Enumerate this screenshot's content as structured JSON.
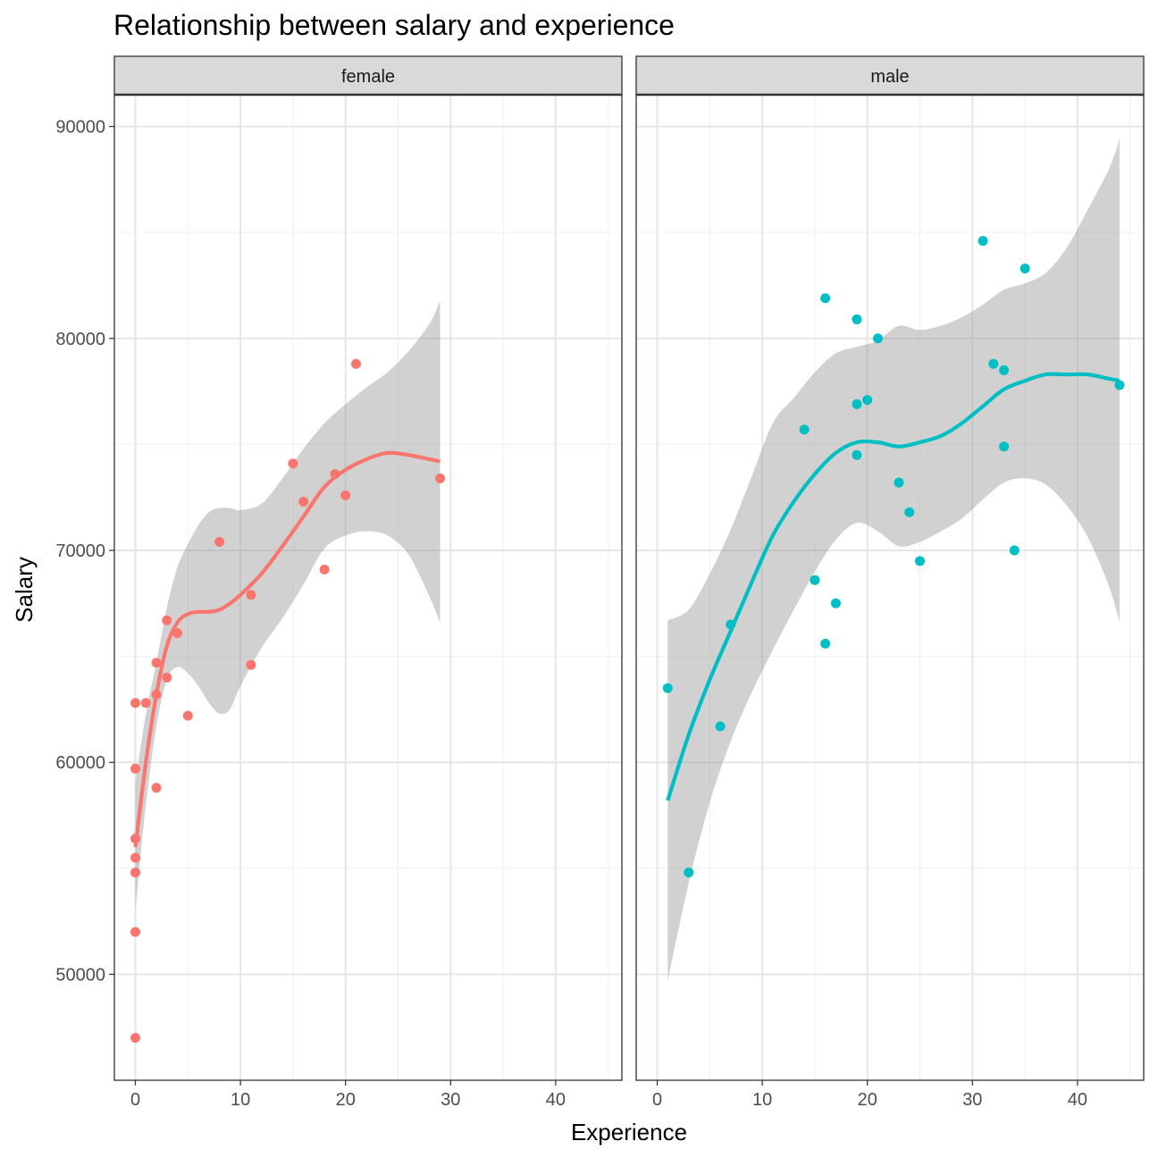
{
  "chart_data": {
    "type": "scatter",
    "title": "Relationship between salary and experience",
    "xlabel": "Experience",
    "ylabel": "Salary",
    "xlim": [
      -2,
      46.3
    ],
    "ylim": [
      45000,
      91500
    ],
    "x_ticks": [
      0,
      10,
      20,
      30,
      40
    ],
    "y_ticks": [
      50000,
      60000,
      70000,
      80000,
      90000
    ],
    "grid": true,
    "legend": "none",
    "facets": [
      {
        "label": "female",
        "color": "#F8766D",
        "points": [
          {
            "x": 0,
            "y": 62800
          },
          {
            "x": 0,
            "y": 59700
          },
          {
            "x": 0,
            "y": 56400
          },
          {
            "x": 0,
            "y": 55500
          },
          {
            "x": 0,
            "y": 54800
          },
          {
            "x": 0,
            "y": 52000
          },
          {
            "x": 0,
            "y": 47000
          },
          {
            "x": 1,
            "y": 62800
          },
          {
            "x": 2,
            "y": 64700
          },
          {
            "x": 2,
            "y": 63200
          },
          {
            "x": 2,
            "y": 58800
          },
          {
            "x": 3,
            "y": 66700
          },
          {
            "x": 3,
            "y": 64000
          },
          {
            "x": 4,
            "y": 66100
          },
          {
            "x": 5,
            "y": 62200
          },
          {
            "x": 8,
            "y": 70400
          },
          {
            "x": 11,
            "y": 67900
          },
          {
            "x": 11,
            "y": 64600
          },
          {
            "x": 15,
            "y": 74100
          },
          {
            "x": 16,
            "y": 72300
          },
          {
            "x": 18,
            "y": 69100
          },
          {
            "x": 19,
            "y": 73600
          },
          {
            "x": 20,
            "y": 72600
          },
          {
            "x": 21,
            "y": 78800
          },
          {
            "x": 29,
            "y": 73400
          }
        ],
        "smooth": [
          {
            "x": 0,
            "y": 56000,
            "ymin": 53000,
            "ymax": 59000
          },
          {
            "x": 1,
            "y": 60000,
            "ymin": 58000,
            "ymax": 62300
          },
          {
            "x": 2,
            "y": 63200,
            "ymin": 61700,
            "ymax": 64700
          },
          {
            "x": 3,
            "y": 65500,
            "ymin": 63900,
            "ymax": 67300
          },
          {
            "x": 4,
            "y": 66600,
            "ymin": 64500,
            "ymax": 69200
          },
          {
            "x": 5,
            "y": 67000,
            "ymin": 64200,
            "ymax": 70300
          },
          {
            "x": 6,
            "y": 67100,
            "ymin": 63600,
            "ymax": 71200
          },
          {
            "x": 7,
            "y": 67100,
            "ymin": 62800,
            "ymax": 71800
          },
          {
            "x": 8,
            "y": 67200,
            "ymin": 62300,
            "ymax": 72000
          },
          {
            "x": 9,
            "y": 67500,
            "ymin": 62500,
            "ymax": 72000
          },
          {
            "x": 10,
            "y": 67900,
            "ymin": 63600,
            "ymax": 71900
          },
          {
            "x": 12,
            "y": 68900,
            "ymin": 65400,
            "ymax": 72200
          },
          {
            "x": 14,
            "y": 70200,
            "ymin": 66800,
            "ymax": 73400
          },
          {
            "x": 16,
            "y": 71600,
            "ymin": 68400,
            "ymax": 74800
          },
          {
            "x": 18,
            "y": 73000,
            "ymin": 70100,
            "ymax": 76000
          },
          {
            "x": 20,
            "y": 73800,
            "ymin": 70700,
            "ymax": 76900
          },
          {
            "x": 22,
            "y": 74300,
            "ymin": 70900,
            "ymax": 77700
          },
          {
            "x": 24,
            "y": 74600,
            "ymin": 70700,
            "ymax": 78400
          },
          {
            "x": 26,
            "y": 74500,
            "ymin": 69800,
            "ymax": 79400
          },
          {
            "x": 28,
            "y": 74300,
            "ymin": 67800,
            "ymax": 80700
          },
          {
            "x": 29,
            "y": 74200,
            "ymin": 66600,
            "ymax": 81800
          }
        ]
      },
      {
        "label": "male",
        "color": "#00BFC4",
        "points": [
          {
            "x": 1,
            "y": 63500
          },
          {
            "x": 3,
            "y": 54800
          },
          {
            "x": 6,
            "y": 61700
          },
          {
            "x": 7,
            "y": 66500
          },
          {
            "x": 14,
            "y": 75700
          },
          {
            "x": 15,
            "y": 68600
          },
          {
            "x": 16,
            "y": 81900
          },
          {
            "x": 16,
            "y": 65600
          },
          {
            "x": 17,
            "y": 67500
          },
          {
            "x": 19,
            "y": 80900
          },
          {
            "x": 19,
            "y": 76900
          },
          {
            "x": 19,
            "y": 74500
          },
          {
            "x": 20,
            "y": 77100
          },
          {
            "x": 21,
            "y": 80000
          },
          {
            "x": 23,
            "y": 73200
          },
          {
            "x": 24,
            "y": 71800
          },
          {
            "x": 25,
            "y": 69500
          },
          {
            "x": 31,
            "y": 84600
          },
          {
            "x": 32,
            "y": 78800
          },
          {
            "x": 33,
            "y": 78500
          },
          {
            "x": 33,
            "y": 74900
          },
          {
            "x": 34,
            "y": 70000
          },
          {
            "x": 35,
            "y": 83300
          },
          {
            "x": 44,
            "y": 77800
          }
        ],
        "smooth": [
          {
            "x": 1,
            "y": 58200,
            "ymin": 49700,
            "ymax": 66700
          },
          {
            "x": 3,
            "y": 61300,
            "ymin": 54300,
            "ymax": 67200
          },
          {
            "x": 5,
            "y": 63900,
            "ymin": 58100,
            "ymax": 68900
          },
          {
            "x": 7,
            "y": 66200,
            "ymin": 61000,
            "ymax": 71000
          },
          {
            "x": 9,
            "y": 68500,
            "ymin": 63300,
            "ymax": 73500
          },
          {
            "x": 11,
            "y": 70700,
            "ymin": 65300,
            "ymax": 76000
          },
          {
            "x": 13,
            "y": 72300,
            "ymin": 67200,
            "ymax": 77200
          },
          {
            "x": 15,
            "y": 73600,
            "ymin": 69000,
            "ymax": 78400
          },
          {
            "x": 17,
            "y": 74600,
            "ymin": 70500,
            "ymax": 79300
          },
          {
            "x": 19,
            "y": 75100,
            "ymin": 71300,
            "ymax": 79600
          },
          {
            "x": 21,
            "y": 75100,
            "ymin": 70900,
            "ymax": 79900
          },
          {
            "x": 23,
            "y": 74900,
            "ymin": 70200,
            "ymax": 80600
          },
          {
            "x": 25,
            "y": 75100,
            "ymin": 70400,
            "ymax": 80400
          },
          {
            "x": 27,
            "y": 75400,
            "ymin": 70900,
            "ymax": 80600
          },
          {
            "x": 29,
            "y": 76000,
            "ymin": 71500,
            "ymax": 81000
          },
          {
            "x": 31,
            "y": 76800,
            "ymin": 72400,
            "ymax": 81600
          },
          {
            "x": 33,
            "y": 77600,
            "ymin": 73200,
            "ymax": 82300
          },
          {
            "x": 35,
            "y": 78000,
            "ymin": 73400,
            "ymax": 82600
          },
          {
            "x": 37,
            "y": 78300,
            "ymin": 73100,
            "ymax": 83100
          },
          {
            "x": 39,
            "y": 78300,
            "ymin": 72100,
            "ymax": 84300
          },
          {
            "x": 41,
            "y": 78300,
            "ymin": 70600,
            "ymax": 86100
          },
          {
            "x": 43,
            "y": 78100,
            "ymin": 68300,
            "ymax": 88000
          },
          {
            "x": 44,
            "y": 78000,
            "ymin": 66600,
            "ymax": 89400
          }
        ]
      }
    ]
  }
}
